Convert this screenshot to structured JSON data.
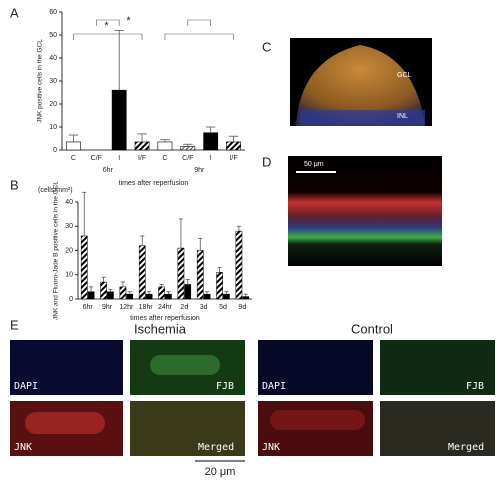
{
  "chart_data": [
    {
      "type": "bar",
      "panel": "A",
      "ylabel": "JNK positive cells in the GCL",
      "xlabel": "times after reperfusion",
      "categories": [
        "C",
        "C/F",
        "I",
        "I/F",
        "C",
        "C/F",
        "I",
        "I/F"
      ],
      "group_labels": [
        "6hr",
        "9hr"
      ],
      "values": [
        3.5,
        0,
        26,
        3.5,
        3.5,
        1.5,
        7.5,
        3.5
      ],
      "errors": [
        3,
        0,
        26,
        3.5,
        1,
        1,
        2.5,
        2.5
      ],
      "styles": [
        "open",
        "light-hatch",
        "solid",
        "hatch",
        "open",
        "light-hatch",
        "solid",
        "hatch"
      ],
      "ylim": [
        0,
        60
      ],
      "yticks": [
        0,
        10,
        20,
        30,
        40,
        50,
        60
      ],
      "annotations": [
        "*",
        "*"
      ]
    },
    {
      "type": "bar",
      "panel": "B",
      "ylabel": "JNK and Fluoro-Jade B positive cells in the GCL",
      "unit": "(cells/mm²)",
      "xlabel": "times after reperfusion",
      "categories": [
        "6hr",
        "9hr",
        "12hr",
        "18hr",
        "24hr",
        "2d",
        "3d",
        "5d",
        "9d"
      ],
      "series": [
        {
          "style": "hatch",
          "values": [
            26,
            7,
            5,
            22,
            5,
            21,
            20,
            11,
            28
          ],
          "errors": [
            18,
            2,
            2,
            4,
            1,
            12,
            5,
            2,
            2
          ]
        },
        {
          "style": "solid",
          "values": [
            3,
            3,
            2,
            2,
            2,
            6,
            2,
            2,
            1
          ],
          "errors": [
            2,
            1,
            1,
            1,
            1,
            2,
            1,
            1,
            1
          ]
        }
      ],
      "ylim": [
        0,
        40
      ],
      "yticks": [
        0,
        10,
        20,
        30,
        40
      ]
    }
  ],
  "panel_c": {
    "label": "C",
    "layers": [
      "GCL",
      "INL"
    ]
  },
  "panel_d": {
    "label": "D",
    "scale": "50 μm"
  },
  "panel_e": {
    "label": "E",
    "conditions": [
      "Ischemia",
      "Control"
    ],
    "channels": [
      "DAPI",
      "FJB",
      "JNK",
      "Merged"
    ],
    "scale": "20 μm"
  }
}
